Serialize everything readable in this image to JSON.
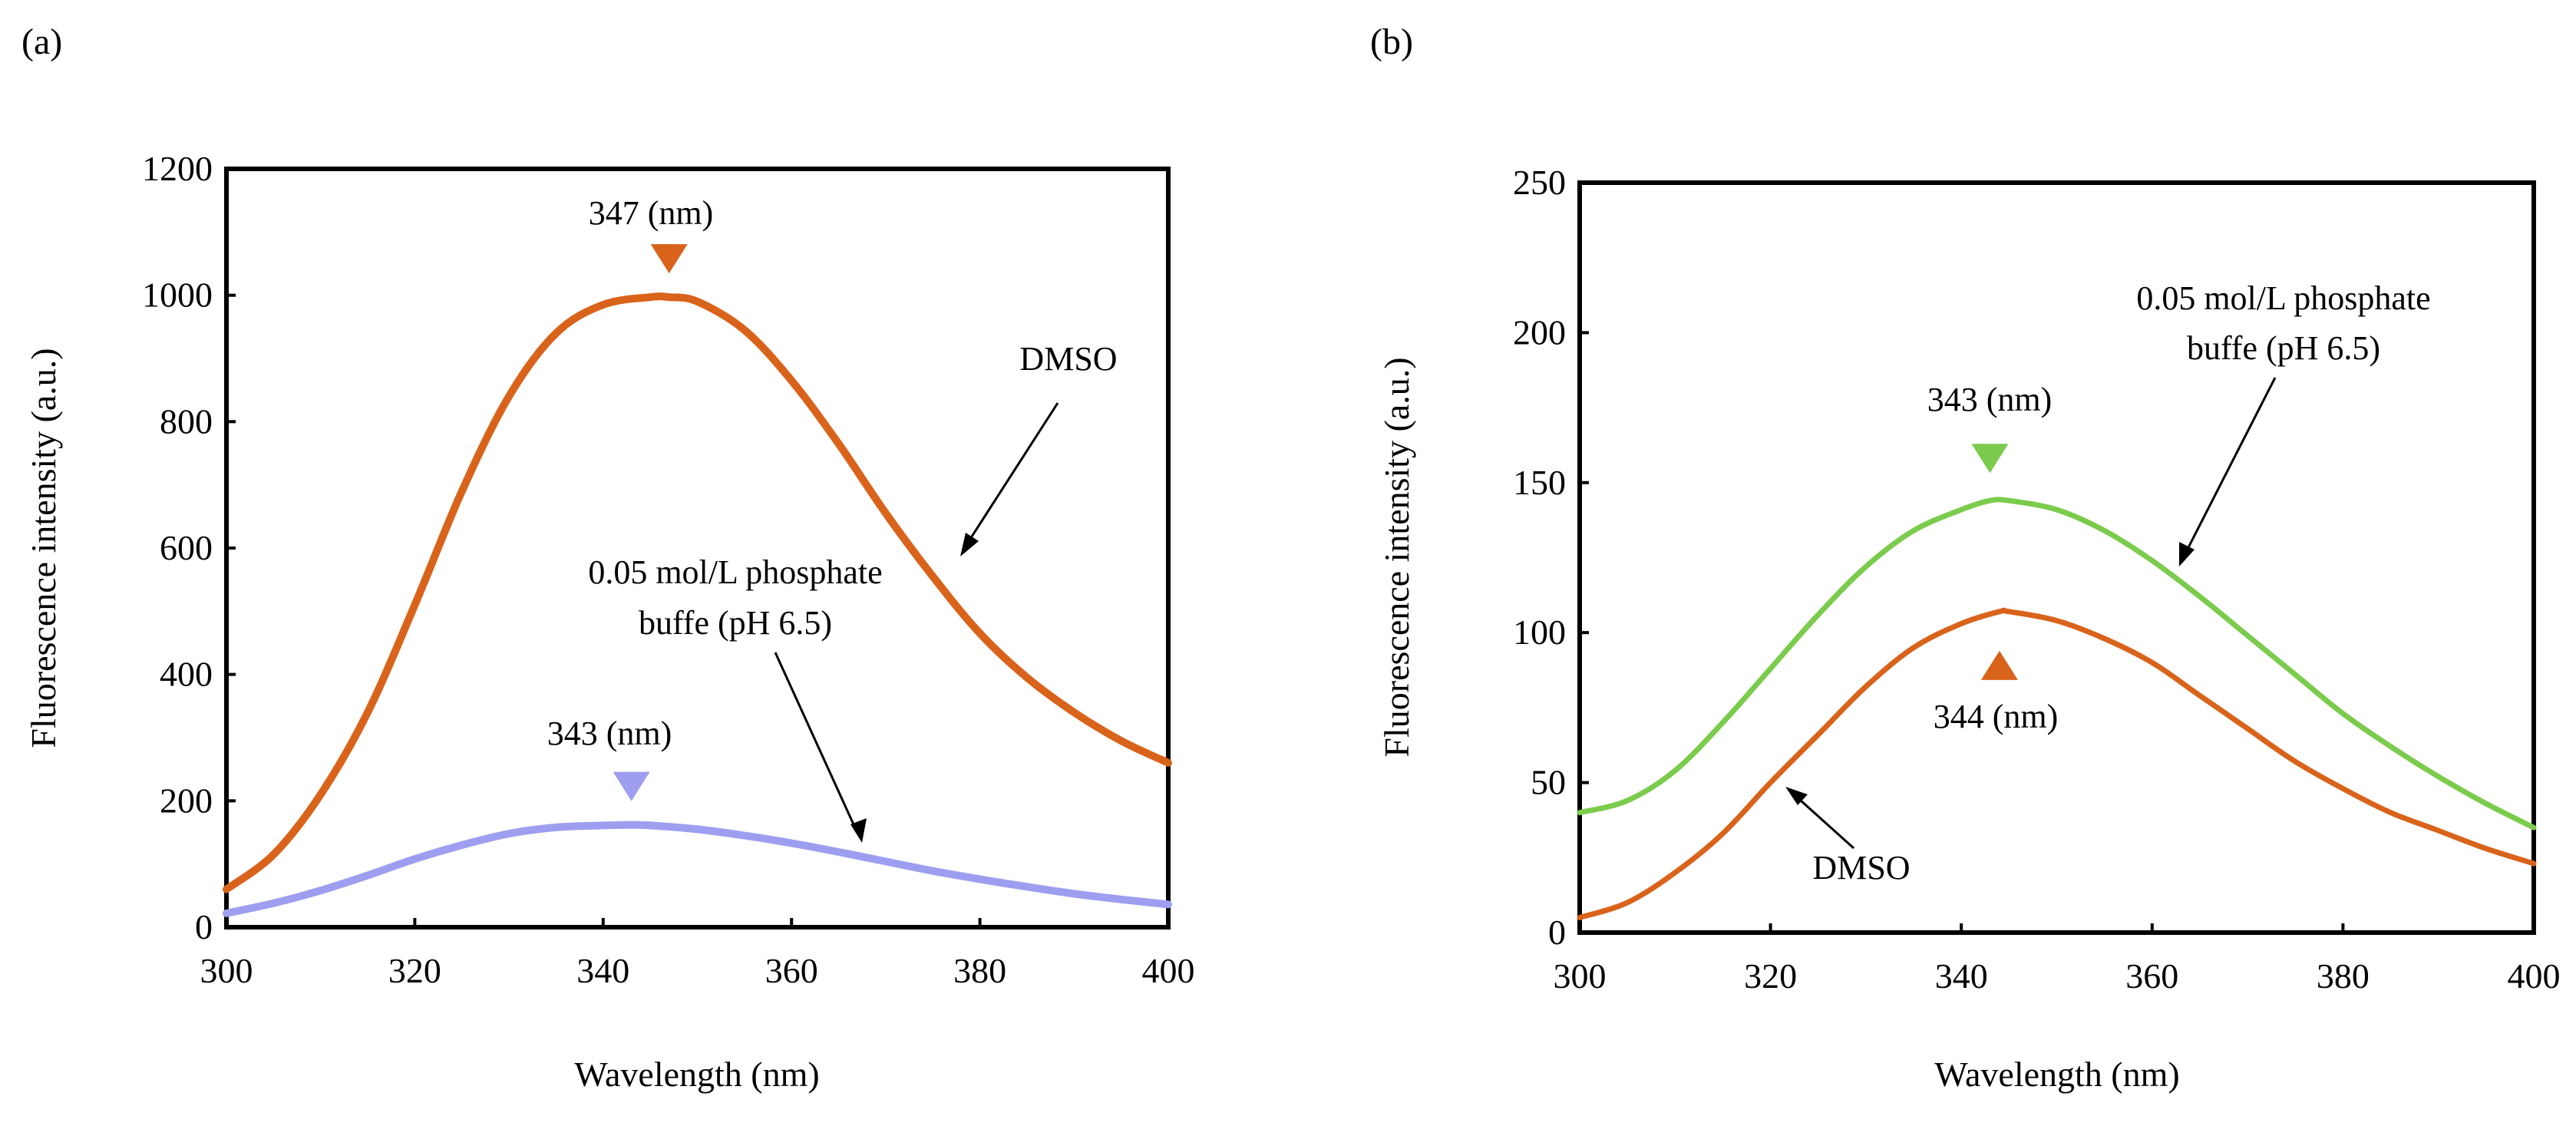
{
  "chart_data": [
    {
      "type": "line",
      "panel_label": "(a)",
      "xlabel": "Wavelength (nm)",
      "ylabel": "Fluorescence intensity (a.u.)",
      "xlim": [
        300,
        400
      ],
      "ylim": [
        0,
        1200
      ],
      "xticks": [
        300,
        320,
        340,
        360,
        380,
        400
      ],
      "yticks": [
        0,
        200,
        400,
        600,
        800,
        1000,
        1200
      ],
      "grid": false,
      "series": [
        {
          "name": "DMSO",
          "color": "#D9631B",
          "x": [
            300,
            305,
            310,
            315,
            320,
            325,
            330,
            335,
            340,
            345,
            347,
            350,
            355,
            360,
            365,
            370,
            375,
            380,
            385,
            390,
            395,
            400
          ],
          "y": [
            60,
            115,
            210,
            340,
            510,
            690,
            840,
            940,
            985,
            997,
            997,
            990,
            945,
            865,
            765,
            655,
            555,
            465,
            395,
            340,
            295,
            260
          ]
        },
        {
          "name": "0.05 mol/L phosphate buffe (pH 6.5)",
          "color": "#9E9EF0",
          "x": [
            300,
            305,
            310,
            315,
            320,
            325,
            330,
            335,
            340,
            343,
            345,
            350,
            355,
            360,
            365,
            370,
            375,
            380,
            385,
            390,
            395,
            400
          ],
          "y": [
            22,
            38,
            58,
            82,
            108,
            130,
            148,
            158,
            161,
            162,
            161,
            155,
            145,
            133,
            119,
            104,
            89,
            76,
            64,
            53,
            44,
            36
          ]
        }
      ],
      "annotations": {
        "peak_dmso": {
          "label": "347 (nm)",
          "x": 347,
          "y": 997,
          "marker_color": "#D9631B"
        },
        "peak_buffer": {
          "label": "343 (nm)",
          "x": 343,
          "y": 162,
          "marker_color": "#9E9EF0"
        },
        "dmso_label": "DMSO",
        "buffer_label_line1": "0.05 mol/L phosphate",
        "buffer_label_line2": "buffe (pH 6.5)"
      }
    },
    {
      "type": "line",
      "panel_label": "(b)",
      "xlabel": "Wavelength (nm)",
      "ylabel": "Fluorescence intensity (a.u.)",
      "xlim": [
        300,
        400
      ],
      "ylim": [
        0,
        250
      ],
      "xticks": [
        300,
        320,
        340,
        360,
        380,
        400
      ],
      "yticks": [
        0,
        50,
        100,
        150,
        200,
        250
      ],
      "grid": false,
      "series": [
        {
          "name": "0.05 mol/L phosphate buffe (pH 6.5)",
          "color": "#7BCB4C",
          "x": [
            300,
            305,
            310,
            315,
            320,
            325,
            330,
            335,
            340,
            343,
            345,
            350,
            355,
            360,
            365,
            370,
            375,
            380,
            385,
            390,
            395,
            400
          ],
          "y": [
            40,
            44,
            54,
            70,
            88,
            106,
            122,
            134,
            141,
            144,
            144,
            141,
            134,
            124,
            112,
            99,
            86,
            73,
            62,
            52,
            43,
            35
          ]
        },
        {
          "name": "DMSO",
          "color": "#D9631B",
          "x": [
            300,
            305,
            310,
            315,
            320,
            325,
            330,
            335,
            340,
            344,
            345,
            350,
            355,
            360,
            365,
            370,
            375,
            380,
            385,
            390,
            395,
            400
          ],
          "y": [
            5,
            10,
            20,
            33,
            50,
            66,
            82,
            95,
            103,
            107,
            107,
            104,
            98,
            90,
            79,
            68,
            57,
            48,
            40,
            34,
            28,
            23
          ]
        }
      ],
      "annotations": {
        "peak_buffer": {
          "label": "343 (nm)",
          "x": 343,
          "y": 144,
          "marker_color": "#7BCB4C"
        },
        "peak_dmso": {
          "label": "344 (nm)",
          "x": 344,
          "y": 107,
          "marker_color": "#D9631B"
        },
        "dmso_label": "DMSO",
        "buffer_label_line1": "0.05 mol/L phosphate",
        "buffer_label_line2": "buffe (pH 6.5)"
      }
    }
  ]
}
